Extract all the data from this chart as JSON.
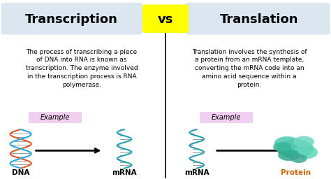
{
  "title_left": "Transcription",
  "title_right": "Translation",
  "vs_text": "vs",
  "vs_bg": "#FFFF00",
  "title_bg_left": "#dce6f1",
  "title_bg_right": "#dce6f1",
  "desc_left": "The process of transcribing a piece\nof DNA into RNA is known as\ntranscription. The enzyme involved\nin the transcription process is RNA\npolymerase.",
  "desc_right": "Translation involves the synthesis of\na protein from an mRNA template,\nconverting the mRNA code into an\namino acid sequence within a\nprotein.",
  "example_label": "Example",
  "example_bg": "#f0d0f0",
  "label_dna": "DNA",
  "label_mrna_left": "mRNA",
  "label_mrna_right": "mRNA",
  "label_protein": "Protein",
  "bg_color": "#ffffff",
  "title_fontsize": 13,
  "body_fontsize": 6.5,
  "label_fontsize": 7.5
}
